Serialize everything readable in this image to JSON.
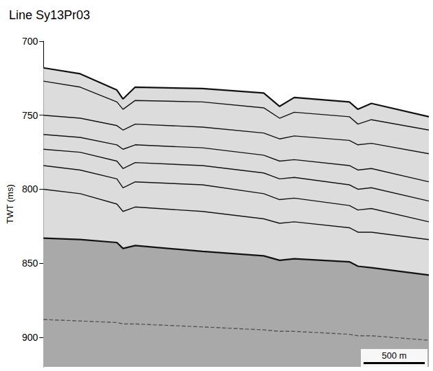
{
  "chart_data": {
    "type": "line",
    "title": "Line Sy13Pr03",
    "y_label": "TWT (ms)",
    "x": [
      0,
      300,
      600,
      650,
      750,
      1300,
      1800,
      1930,
      2050,
      2500,
      2570,
      2680,
      3150
    ],
    "series": [
      {
        "color": "#111111",
        "line_style": "solid",
        "values": [
          718,
          722,
          733,
          739,
          731,
          732,
          735,
          744,
          738,
          741,
          746,
          742,
          751
        ]
      },
      {
        "color": "#111111",
        "line_style": "solid",
        "values": [
          727,
          731,
          741,
          746,
          740,
          741,
          745,
          752,
          748,
          751,
          756,
          753,
          760
        ]
      },
      {
        "color": "#111111",
        "line_style": "solid",
        "values": [
          750,
          752,
          757,
          760,
          756,
          758,
          762,
          766,
          764,
          767,
          770,
          769,
          776
        ]
      },
      {
        "color": "#111111",
        "line_style": "solid",
        "values": [
          763,
          765,
          770,
          773,
          770,
          772,
          777,
          781,
          780,
          784,
          787,
          786,
          795
        ]
      },
      {
        "color": "#111111",
        "line_style": "solid",
        "values": [
          773,
          775,
          781,
          786,
          782,
          784,
          789,
          793,
          792,
          797,
          800,
          799,
          808
        ]
      },
      {
        "color": "#111111",
        "line_style": "solid",
        "values": [
          784,
          787,
          793,
          799,
          795,
          797,
          803,
          807,
          806,
          811,
          814,
          813,
          822
        ]
      },
      {
        "color": "#111111",
        "line_style": "solid",
        "values": [
          800,
          803,
          810,
          815,
          812,
          815,
          820,
          823,
          822,
          826,
          829,
          829,
          834
        ]
      },
      {
        "color": "#111111",
        "line_style": "solid",
        "values": [
          833,
          834,
          836,
          840,
          838,
          842,
          845,
          848,
          847,
          849,
          852,
          853,
          858
        ]
      },
      {
        "color": "#555555",
        "line_style": "dashed",
        "values": [
          888,
          889,
          890,
          891,
          891,
          893,
          895,
          896,
          896,
          898,
          899,
          899,
          902
        ]
      }
    ],
    "xlim": [
      0,
      3150
    ],
    "ylim": [
      700,
      920
    ],
    "yticks": [
      700,
      750,
      800,
      850,
      900
    ],
    "grid": false,
    "tick_labels": "y",
    "scale_bar": {
      "length": 500,
      "label": "500 m"
    }
  }
}
